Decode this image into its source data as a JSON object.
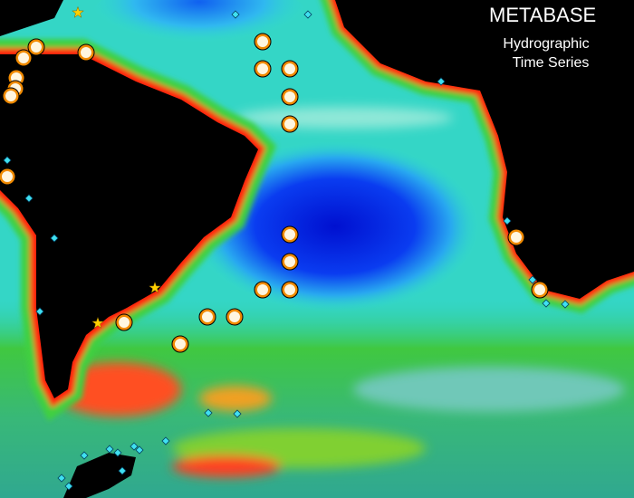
{
  "title": "METABASE",
  "subtitle": [
    "Hydrographic",
    "Time Series"
  ]
}
